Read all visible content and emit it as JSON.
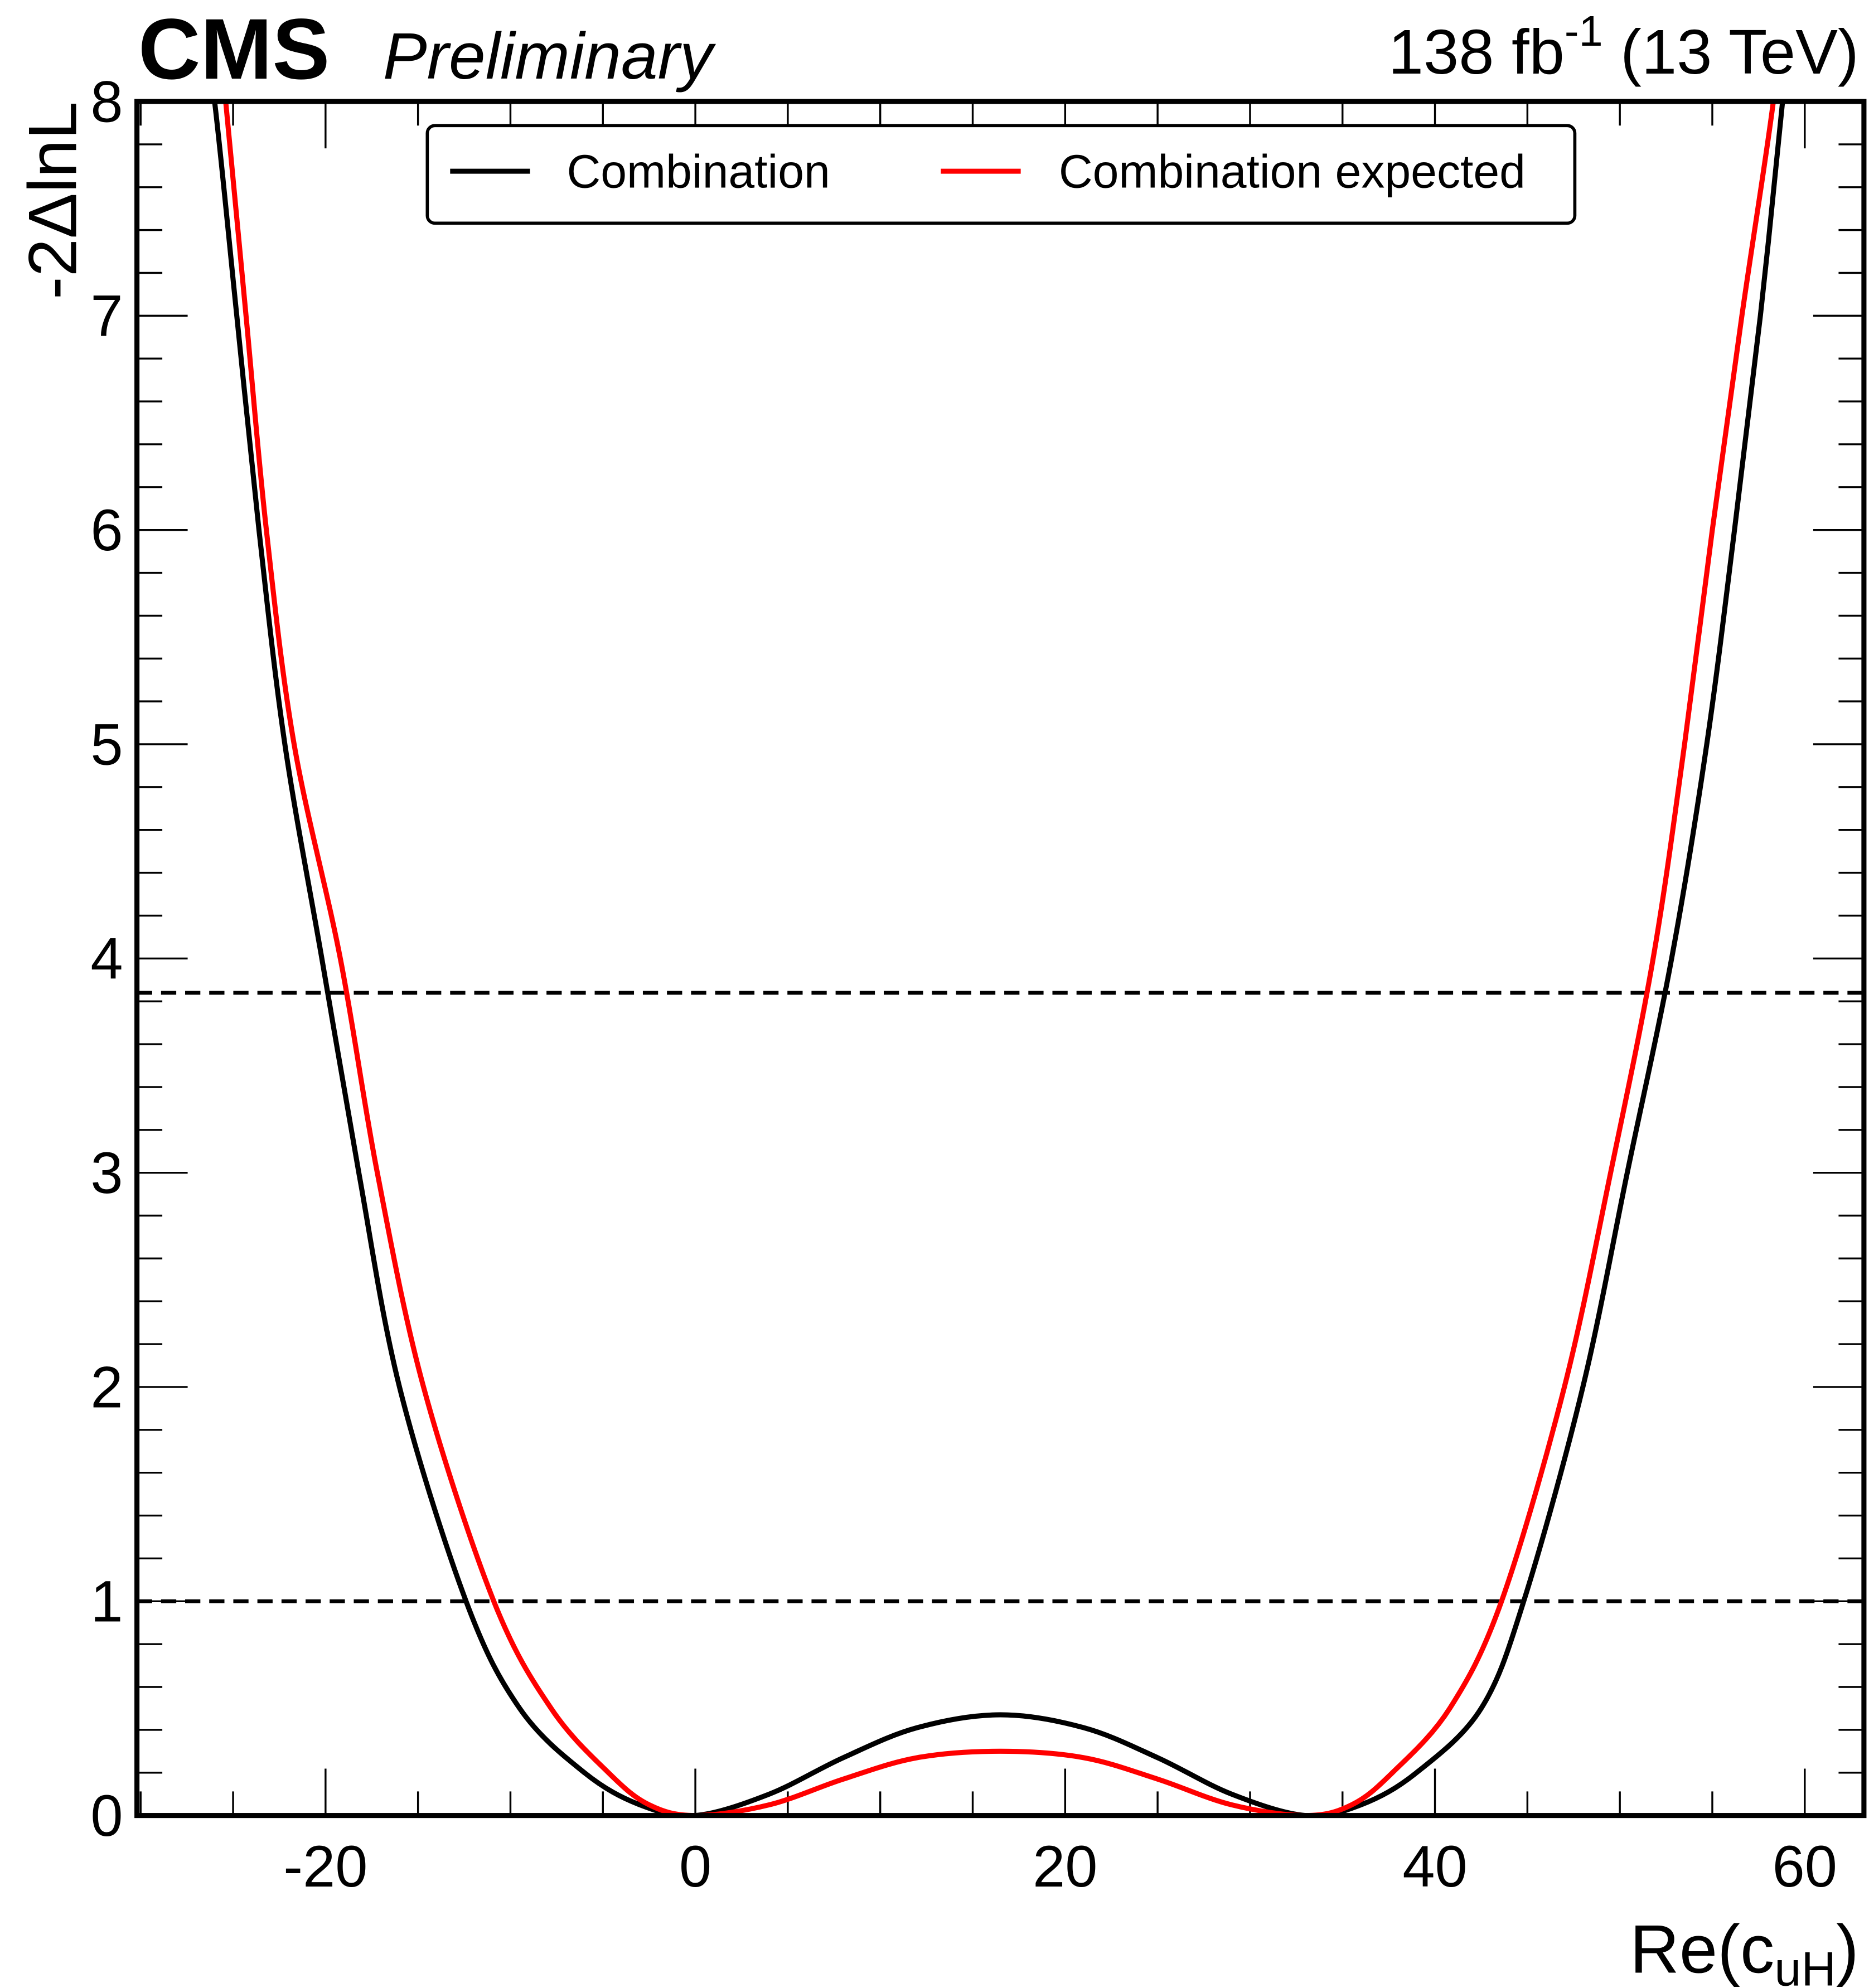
{
  "header": {
    "experiment": "CMS",
    "status": "Preliminary",
    "lumi_prefix": "138 fb",
    "lumi_exponent": "-1",
    "lumi_suffix": " (13 TeV)"
  },
  "chart_data": {
    "type": "line",
    "title": "",
    "xlabel": "Re(c",
    "xlabel_subscript": "uH",
    "xlabel_suffix": ")",
    "ylabel": "-2ΔlnL",
    "xlim": [
      -30.2,
      63.2
    ],
    "ylim": [
      0,
      8
    ],
    "x_ticks": [
      -20,
      0,
      20,
      40,
      60
    ],
    "x_tick_labels": [
      "-20",
      "0",
      "20",
      "40",
      "60"
    ],
    "y_ticks": [
      0,
      1,
      2,
      3,
      4,
      5,
      6,
      7,
      8
    ],
    "y_tick_labels": [
      "0",
      "1",
      "2",
      "3",
      "4",
      "5",
      "6",
      "7",
      "8"
    ],
    "reference_lines": [
      1.0,
      3.84
    ],
    "legend_placement": "top-center",
    "colors": {
      "observed": "#000000",
      "expected": "#ff0000"
    },
    "series": [
      {
        "name": "Combination",
        "color": "#000000",
        "x": [
          -27.0,
          -26.0,
          -24.8,
          -23.6,
          -22.2,
          -20.2,
          -18.2,
          -16.0,
          -12.4,
          -9.5,
          -6.0,
          -3.0,
          0.0,
          4.0,
          8.0,
          12.0,
          16.5,
          21.0,
          25.0,
          29.0,
          33.0,
          36.0,
          39.0,
          42.5,
          44.8,
          48.0,
          50.4,
          52.8,
          54.7,
          56.2,
          57.6,
          58.8,
          59.3
        ],
        "y": [
          8.6,
          8.0,
          7.0,
          6.0,
          5.0,
          4.0,
          3.0,
          2.0,
          1.0,
          0.5,
          0.2,
          0.05,
          0.0,
          0.1,
          0.27,
          0.41,
          0.47,
          0.41,
          0.27,
          0.1,
          0.0,
          0.05,
          0.2,
          0.5,
          1.0,
          2.0,
          3.0,
          4.0,
          5.0,
          6.0,
          7.0,
          8.0,
          8.5
        ]
      },
      {
        "name": "Combination expected",
        "color": "#ff0000",
        "x": [
          -26.0,
          -25.4,
          -24.3,
          -23.2,
          -21.7,
          -19.2,
          -17.2,
          -14.7,
          -10.9,
          -7.8,
          -4.7,
          -2.5,
          0.0,
          4.0,
          8.0,
          12.0,
          16.5,
          21.0,
          25.0,
          29.0,
          33.0,
          35.5,
          37.7,
          40.8,
          43.6,
          47.0,
          49.5,
          51.8,
          53.5,
          55.0,
          56.6,
          58.3,
          58.8
        ],
        "y": [
          8.5,
          8.0,
          7.0,
          6.0,
          5.0,
          4.0,
          3.0,
          2.0,
          1.0,
          0.5,
          0.2,
          0.05,
          0.0,
          0.05,
          0.17,
          0.27,
          0.3,
          0.27,
          0.17,
          0.05,
          0.0,
          0.05,
          0.2,
          0.5,
          1.0,
          2.0,
          3.0,
          4.0,
          5.0,
          6.0,
          7.0,
          8.0,
          8.5
        ]
      }
    ]
  }
}
